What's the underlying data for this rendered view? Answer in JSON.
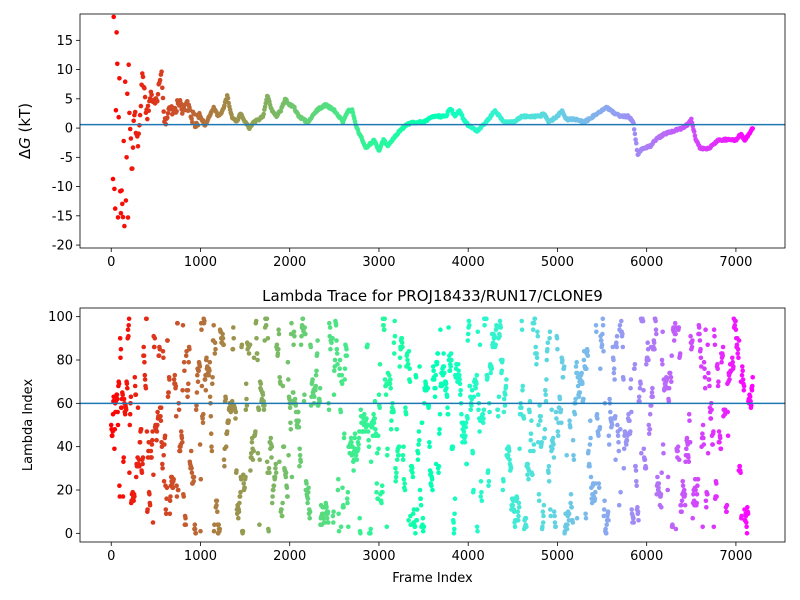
{
  "chart_data": [
    {
      "type": "scatter",
      "title": "",
      "xlabel": "",
      "ylabel_prefix": "Δ",
      "ylabel_symbol": "G",
      "ylabel_suffix": " (kT)",
      "xlim": [
        -350,
        7550
      ],
      "ylim": [
        -20.5,
        19.5
      ],
      "xticks": [
        0,
        1000,
        2000,
        3000,
        4000,
        5000,
        6000,
        7000
      ],
      "yticks": [
        -20,
        -15,
        -10,
        -5,
        0,
        5,
        10,
        15
      ],
      "hline": 0.6,
      "hline_color": "#1f77b4",
      "colormap": "rainbow",
      "n_frames": 7200,
      "legend": "none",
      "grid": false,
      "anchors": [
        [
          25,
          0
        ],
        [
          30,
          18
        ],
        [
          40,
          -15
        ],
        [
          55,
          10
        ],
        [
          70,
          -10
        ],
        [
          90,
          6
        ],
        [
          110,
          -17
        ],
        [
          140,
          4
        ],
        [
          170,
          -18
        ],
        [
          200,
          2
        ],
        [
          230,
          -7
        ],
        [
          260,
          3
        ],
        [
          300,
          -3
        ],
        [
          350,
          9
        ],
        [
          400,
          2
        ],
        [
          450,
          6
        ],
        [
          500,
          4
        ],
        [
          560,
          10
        ],
        [
          600,
          1
        ],
        [
          650,
          4
        ],
        [
          700,
          2
        ],
        [
          750,
          5
        ],
        [
          800,
          3
        ],
        [
          850,
          4
        ],
        [
          900,
          2
        ],
        [
          950,
          1
        ],
        [
          1000,
          2
        ],
        [
          1050,
          0.5
        ],
        [
          1100,
          2
        ],
        [
          1150,
          3.5
        ],
        [
          1200,
          2
        ],
        [
          1250,
          3
        ],
        [
          1300,
          5.5
        ],
        [
          1350,
          2
        ],
        [
          1400,
          1
        ],
        [
          1450,
          2.5
        ],
        [
          1500,
          1
        ],
        [
          1550,
          0
        ],
        [
          1600,
          1
        ],
        [
          1700,
          2
        ],
        [
          1750,
          5.5
        ],
        [
          1800,
          3
        ],
        [
          1850,
          2
        ],
        [
          1900,
          3
        ],
        [
          1950,
          5
        ],
        [
          2000,
          4
        ],
        [
          2050,
          3.5
        ],
        [
          2100,
          2
        ],
        [
          2200,
          1
        ],
        [
          2300,
          3
        ],
        [
          2400,
          4
        ],
        [
          2500,
          3
        ],
        [
          2600,
          1
        ],
        [
          2650,
          3
        ],
        [
          2700,
          3
        ],
        [
          2750,
          0
        ],
        [
          2800,
          -1.5
        ],
        [
          2850,
          -3.5
        ],
        [
          2950,
          -2
        ],
        [
          3000,
          -4
        ],
        [
          3050,
          -2
        ],
        [
          3100,
          -3
        ],
        [
          3200,
          -1
        ],
        [
          3300,
          0.5
        ],
        [
          3400,
          1
        ],
        [
          3500,
          1
        ],
        [
          3600,
          2
        ],
        [
          3700,
          2
        ],
        [
          3750,
          2
        ],
        [
          3800,
          3.5
        ],
        [
          3850,
          2
        ],
        [
          3900,
          3
        ],
        [
          3950,
          1.5
        ],
        [
          4000,
          0.5
        ],
        [
          4050,
          0
        ],
        [
          4100,
          -0.5
        ],
        [
          4200,
          1
        ],
        [
          4250,
          2
        ],
        [
          4300,
          3
        ],
        [
          4400,
          1
        ],
        [
          4500,
          1
        ],
        [
          4600,
          2
        ],
        [
          4700,
          2
        ],
        [
          4800,
          2
        ],
        [
          4850,
          2.5
        ],
        [
          4900,
          1
        ],
        [
          5000,
          2
        ],
        [
          5050,
          3
        ],
        [
          5100,
          1.5
        ],
        [
          5200,
          1.5
        ],
        [
          5300,
          1
        ],
        [
          5400,
          2
        ],
        [
          5500,
          3
        ],
        [
          5550,
          3.5
        ],
        [
          5600,
          3
        ],
        [
          5700,
          2
        ],
        [
          5800,
          2
        ],
        [
          5850,
          1
        ],
        [
          5900,
          -4.5
        ],
        [
          5950,
          -3.5
        ],
        [
          6050,
          -3
        ],
        [
          6100,
          -2
        ],
        [
          6200,
          -1
        ],
        [
          6300,
          -0.5
        ],
        [
          6400,
          0
        ],
        [
          6450,
          0.5
        ],
        [
          6500,
          1.5
        ],
        [
          6550,
          -2
        ],
        [
          6600,
          -3.5
        ],
        [
          6700,
          -3.5
        ],
        [
          6800,
          -2
        ],
        [
          6900,
          -2
        ],
        [
          7000,
          -2
        ],
        [
          7050,
          -1
        ],
        [
          7100,
          -2
        ],
        [
          7150,
          -1
        ],
        [
          7190,
          0
        ]
      ]
    },
    {
      "type": "scatter",
      "title": "Lambda Trace for PROJ18433/RUN17/CLONE9",
      "xlabel": "Frame Index",
      "ylabel": "Lambda Index",
      "xlim": [
        -350,
        7550
      ],
      "ylim": [
        -4,
        104
      ],
      "xticks": [
        0,
        1000,
        2000,
        3000,
        4000,
        5000,
        6000,
        7000
      ],
      "yticks": [
        0,
        20,
        40,
        60,
        80,
        100
      ],
      "hline": 60,
      "hline_color": "#1f77b4",
      "colormap": "rainbow",
      "n_frames": 7200,
      "lambda_min": 0,
      "lambda_max": 99,
      "legend": "none",
      "grid": false
    }
  ]
}
